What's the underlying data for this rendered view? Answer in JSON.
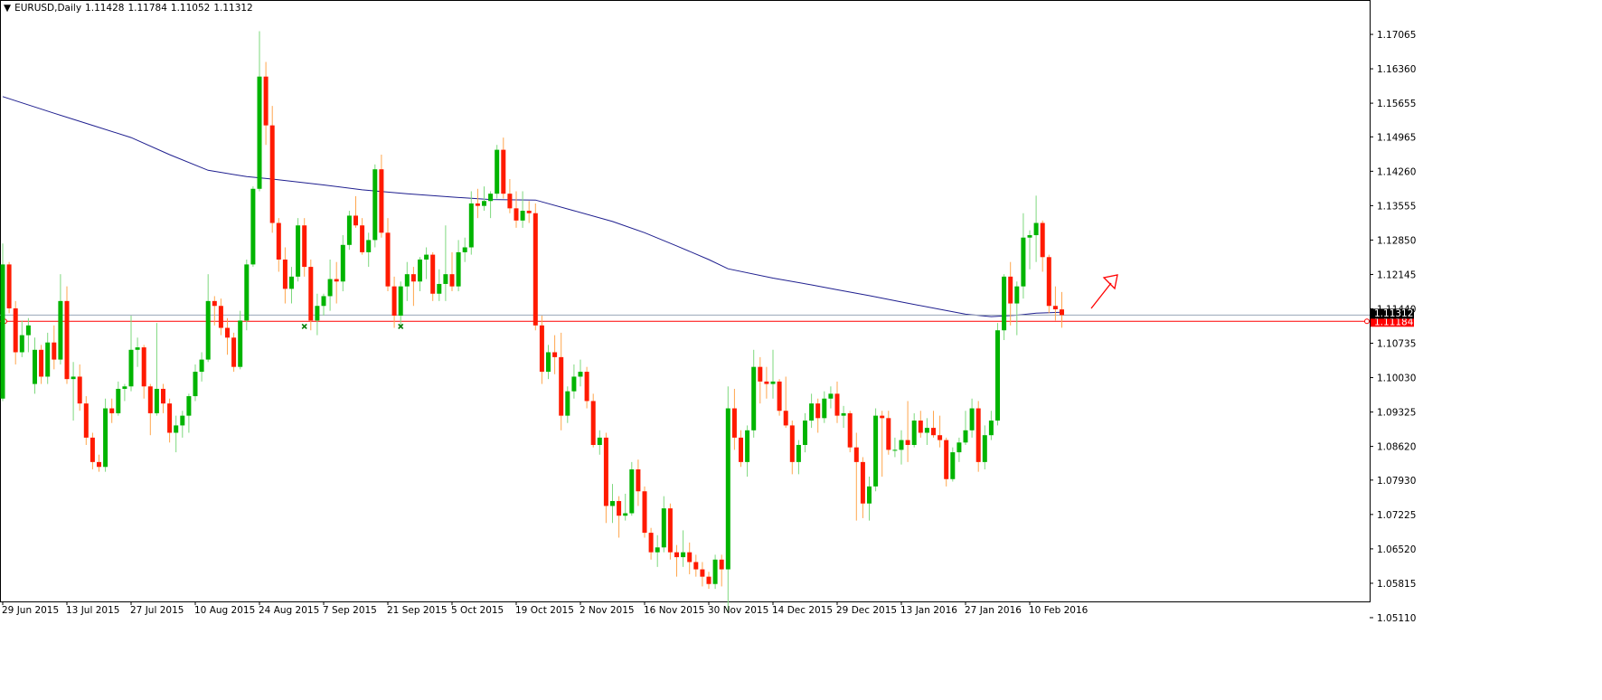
{
  "chart_data": {
    "type": "candlestick",
    "title": "EURUSD,Daily",
    "categories": [
      "29 Jun 2015",
      null,
      null,
      null,
      null,
      null,
      null,
      null,
      null,
      null,
      "13 Jul 2015",
      null,
      null,
      null,
      null,
      null,
      null,
      null,
      null,
      null,
      "27 Jul 2015",
      null,
      null,
      null,
      null,
      null,
      null,
      null,
      null,
      null,
      "10 Aug 2015",
      null,
      null,
      null,
      null,
      null,
      null,
      null,
      null,
      null,
      "24 Aug 2015",
      null,
      null,
      null,
      null,
      null,
      null,
      null,
      null,
      null,
      "7 Sep 2015",
      null,
      null,
      null,
      null,
      null,
      null,
      null,
      null,
      null,
      "21 Sep 2015",
      null,
      null,
      null,
      null,
      null,
      null,
      null,
      null,
      null,
      "5 Oct 2015",
      null,
      null,
      null,
      null,
      null,
      null,
      null,
      null,
      null,
      "19 Oct 2015",
      null,
      null,
      null,
      null,
      null,
      null,
      null,
      null,
      null,
      "2 Nov 2015",
      null,
      null,
      null,
      null,
      null,
      null,
      null,
      null,
      null,
      "16 Nov 2015",
      null,
      null,
      null,
      null,
      null,
      null,
      null,
      null,
      null,
      "30 Nov 2015",
      null,
      null,
      null,
      null,
      null,
      null,
      null,
      null,
      null,
      "14 Dec 2015",
      null,
      null,
      null,
      null,
      null,
      null,
      null,
      null,
      null,
      "29 Dec 2015",
      null,
      null,
      null,
      null,
      null,
      null,
      null,
      null,
      null,
      "13 Jan 2016",
      null,
      null,
      null,
      null,
      null,
      null,
      null,
      null,
      null,
      "27 Jan 2016",
      null,
      null,
      null,
      null,
      null,
      null,
      null,
      null,
      null,
      "10 Feb 2016",
      null,
      null,
      null,
      null,
      null
    ],
    "ohlc": [
      [
        1.096,
        1.1278,
        1.0955,
        1.1235
      ],
      [
        1.1235,
        1.124,
        1.1135,
        1.1145
      ],
      [
        1.1145,
        1.116,
        1.103,
        1.1055
      ],
      [
        1.1055,
        1.112,
        1.1045,
        1.109
      ],
      [
        1.109,
        1.1125,
        1.1055,
        1.111
      ],
      [
        1.099,
        1.1085,
        1.097,
        1.106
      ],
      [
        1.106,
        1.107,
        1.099,
        1.1005
      ],
      [
        1.1005,
        1.1095,
        1.099,
        1.1075
      ],
      [
        1.1075,
        1.111,
        1.102,
        1.104
      ],
      [
        1.104,
        1.1215,
        1.103,
        1.116
      ],
      [
        1.116,
        1.119,
        1.099,
        1.1
      ],
      [
        1.1,
        1.1035,
        1.0915,
        1.1005
      ],
      [
        1.1005,
        1.103,
        1.0935,
        1.095
      ],
      [
        1.095,
        1.0965,
        1.0865,
        1.088
      ],
      [
        1.088,
        1.089,
        1.0815,
        1.083
      ],
      [
        1.083,
        1.0845,
        1.081,
        1.082
      ],
      [
        1.082,
        1.096,
        1.081,
        1.094
      ],
      [
        1.094,
        1.096,
        1.091,
        1.093
      ],
      [
        1.093,
        1.0995,
        1.0925,
        1.098
      ],
      [
        1.098,
        1.099,
        1.0955,
        1.0985
      ],
      [
        1.0985,
        1.113,
        1.0975,
        1.106
      ],
      [
        1.106,
        1.1085,
        1.1025,
        1.1065
      ],
      [
        1.1065,
        1.107,
        1.096,
        1.0985
      ],
      [
        1.0985,
        1.099,
        1.0885,
        1.093
      ],
      [
        1.093,
        1.1115,
        1.0925,
        1.098
      ],
      [
        1.098,
        1.099,
        1.093,
        1.095
      ],
      [
        1.095,
        1.096,
        1.087,
        1.089
      ],
      [
        1.089,
        1.0925,
        1.085,
        1.0905
      ],
      [
        1.0905,
        1.0935,
        1.088,
        1.0925
      ],
      [
        1.0925,
        1.097,
        1.089,
        1.0965
      ],
      [
        1.0965,
        1.103,
        1.0955,
        1.1015
      ],
      [
        1.1015,
        1.1055,
        1.0995,
        1.104
      ],
      [
        1.104,
        1.1215,
        1.1035,
        1.116
      ],
      [
        1.116,
        1.117,
        1.111,
        1.115
      ],
      [
        1.115,
        1.1165,
        1.109,
        1.1105
      ],
      [
        1.1105,
        1.1125,
        1.105,
        1.1085
      ],
      [
        1.1085,
        1.1095,
        1.1015,
        1.1025
      ],
      [
        1.1025,
        1.114,
        1.102,
        1.112
      ],
      [
        1.112,
        1.1245,
        1.11,
        1.1235
      ],
      [
        1.1235,
        1.1395,
        1.123,
        1.139
      ],
      [
        1.139,
        1.1713,
        1.1385,
        1.162
      ],
      [
        1.162,
        1.165,
        1.148,
        1.152
      ],
      [
        1.152,
        1.156,
        1.13,
        1.132
      ],
      [
        1.132,
        1.133,
        1.122,
        1.1245
      ],
      [
        1.1245,
        1.127,
        1.1155,
        1.1185
      ],
      [
        1.1185,
        1.123,
        1.1155,
        1.121
      ],
      [
        1.121,
        1.133,
        1.12,
        1.1315
      ],
      [
        1.1315,
        1.133,
        1.121,
        1.123
      ],
      [
        1.123,
        1.1245,
        1.11,
        1.112
      ],
      [
        1.112,
        1.1175,
        1.109,
        1.115
      ],
      [
        1.115,
        1.1175,
        1.113,
        1.117
      ],
      [
        1.117,
        1.1245,
        1.114,
        1.1205
      ],
      [
        1.1205,
        1.124,
        1.1155,
        1.12
      ],
      [
        1.12,
        1.1295,
        1.118,
        1.1275
      ],
      [
        1.1275,
        1.1345,
        1.1265,
        1.1335
      ],
      [
        1.1335,
        1.1375,
        1.131,
        1.1315
      ],
      [
        1.1315,
        1.133,
        1.1255,
        1.126
      ],
      [
        1.126,
        1.13,
        1.123,
        1.1285
      ],
      [
        1.1285,
        1.144,
        1.127,
        1.143
      ],
      [
        1.143,
        1.146,
        1.129,
        1.13
      ],
      [
        1.13,
        1.133,
        1.118,
        1.119
      ],
      [
        1.119,
        1.121,
        1.1105,
        1.113
      ],
      [
        1.113,
        1.12,
        1.1105,
        1.119
      ],
      [
        1.119,
        1.124,
        1.116,
        1.1215
      ],
      [
        1.1215,
        1.123,
        1.115,
        1.12
      ],
      [
        1.12,
        1.125,
        1.118,
        1.1245
      ],
      [
        1.1245,
        1.127,
        1.1205,
        1.1255
      ],
      [
        1.1255,
        1.126,
        1.116,
        1.1175
      ],
      [
        1.1175,
        1.1225,
        1.116,
        1.1195
      ],
      [
        1.1195,
        1.1315,
        1.116,
        1.1215
      ],
      [
        1.1215,
        1.126,
        1.118,
        1.119
      ],
      [
        1.119,
        1.1285,
        1.118,
        1.126
      ],
      [
        1.126,
        1.129,
        1.124,
        1.127
      ],
      [
        1.127,
        1.1385,
        1.1255,
        1.136
      ],
      [
        1.136,
        1.139,
        1.133,
        1.1355
      ],
      [
        1.1355,
        1.1395,
        1.1345,
        1.1365
      ],
      [
        1.1365,
        1.1385,
        1.133,
        1.138
      ],
      [
        1.138,
        1.148,
        1.137,
        1.147
      ],
      [
        1.147,
        1.1495,
        1.137,
        1.138
      ],
      [
        1.138,
        1.141,
        1.134,
        1.135
      ],
      [
        1.135,
        1.1385,
        1.131,
        1.1325
      ],
      [
        1.1325,
        1.1385,
        1.131,
        1.1345
      ],
      [
        1.1345,
        1.1365,
        1.132,
        1.134
      ],
      [
        1.134,
        1.136,
        1.11,
        1.111
      ],
      [
        1.111,
        1.113,
        1.099,
        1.1015
      ],
      [
        1.1015,
        1.107,
        1.1,
        1.1055
      ],
      [
        1.1055,
        1.109,
        1.101,
        1.1045
      ],
      [
        1.1045,
        1.1095,
        1.0895,
        1.0925
      ],
      [
        1.0925,
        1.0985,
        1.091,
        1.0975
      ],
      [
        1.0975,
        1.103,
        1.096,
        1.1005
      ],
      [
        1.1005,
        1.104,
        1.0985,
        1.1015
      ],
      [
        1.1015,
        1.1025,
        1.094,
        1.0955
      ],
      [
        1.0955,
        1.097,
        1.086,
        1.0865
      ],
      [
        1.0865,
        1.0895,
        1.0845,
        1.088
      ],
      [
        1.088,
        1.089,
        1.0705,
        1.074
      ],
      [
        1.074,
        1.0785,
        1.0705,
        1.075
      ],
      [
        1.075,
        1.076,
        1.0675,
        1.072
      ],
      [
        1.072,
        1.0765,
        1.071,
        1.0725
      ],
      [
        1.0725,
        1.083,
        1.072,
        1.0815
      ],
      [
        1.0815,
        1.0835,
        1.074,
        1.077
      ],
      [
        1.077,
        1.078,
        1.0675,
        1.0685
      ],
      [
        1.0685,
        1.0695,
        1.063,
        1.0645
      ],
      [
        1.0645,
        1.068,
        1.0615,
        1.0655
      ],
      [
        1.0655,
        1.076,
        1.0645,
        1.0735
      ],
      [
        1.0735,
        1.0745,
        1.063,
        1.0645
      ],
      [
        1.0645,
        1.066,
        1.0595,
        1.0635
      ],
      [
        1.0635,
        1.069,
        1.0615,
        1.0645
      ],
      [
        1.0645,
        1.0665,
        1.06,
        1.0625
      ],
      [
        1.0625,
        1.064,
        1.0595,
        1.061
      ],
      [
        1.061,
        1.0625,
        1.0575,
        1.0595
      ],
      [
        1.0595,
        1.0605,
        1.057,
        1.058
      ],
      [
        1.058,
        1.064,
        1.057,
        1.063
      ],
      [
        1.063,
        1.064,
        1.0575,
        1.061
      ],
      [
        1.061,
        1.0985,
        1.0524,
        1.094
      ],
      [
        1.094,
        1.098,
        1.0855,
        1.088
      ],
      [
        1.088,
        1.0895,
        1.082,
        1.083
      ],
      [
        1.083,
        1.0905,
        1.08,
        1.0895
      ],
      [
        1.0895,
        1.106,
        1.088,
        1.1025
      ],
      [
        1.1025,
        1.1045,
        1.095,
        1.0995
      ],
      [
        1.0995,
        1.1025,
        1.096,
        1.099
      ],
      [
        1.099,
        1.106,
        1.096,
        1.0995
      ],
      [
        1.0995,
        1.1,
        1.0925,
        1.0935
      ],
      [
        1.0935,
        1.1005,
        1.09,
        1.0905
      ],
      [
        1.0905,
        1.0915,
        1.0805,
        1.083
      ],
      [
        1.083,
        1.0875,
        1.0805,
        1.0865
      ],
      [
        1.0865,
        1.093,
        1.085,
        1.0915
      ],
      [
        1.0915,
        1.097,
        1.09,
        1.095
      ],
      [
        1.095,
        1.096,
        1.089,
        1.092
      ],
      [
        1.092,
        1.0975,
        1.091,
        1.096
      ],
      [
        1.096,
        1.0985,
        1.094,
        1.097
      ],
      [
        1.097,
        1.0995,
        1.091,
        1.0925
      ],
      [
        1.0925,
        1.0945,
        1.09,
        1.093
      ],
      [
        1.093,
        1.0935,
        1.085,
        1.086
      ],
      [
        1.086,
        1.089,
        1.071,
        1.083
      ],
      [
        1.083,
        1.084,
        1.0715,
        1.0745
      ],
      [
        1.0745,
        1.08,
        1.071,
        1.078
      ],
      [
        1.078,
        1.094,
        1.077,
        1.0925
      ],
      [
        1.0925,
        1.0935,
        1.08,
        1.092
      ],
      [
        1.092,
        1.0935,
        1.0845,
        1.0855
      ],
      [
        1.0855,
        1.088,
        1.084,
        1.0855
      ],
      [
        1.0855,
        1.0895,
        1.0825,
        1.0875
      ],
      [
        1.0875,
        1.0955,
        1.083,
        1.0865
      ],
      [
        1.0865,
        1.093,
        1.086,
        1.0915
      ],
      [
        1.0915,
        1.0935,
        1.088,
        1.089
      ],
      [
        1.089,
        1.092,
        1.0865,
        1.09
      ],
      [
        1.09,
        1.0935,
        1.088,
        1.0885
      ],
      [
        1.0885,
        1.0925,
        1.086,
        1.0875
      ],
      [
        1.0875,
        1.088,
        1.078,
        1.0795
      ],
      [
        1.0795,
        1.086,
        1.079,
        1.085
      ],
      [
        1.085,
        1.088,
        1.083,
        1.087
      ],
      [
        1.087,
        1.0935,
        1.0865,
        1.0895
      ],
      [
        1.0895,
        1.096,
        1.088,
        1.094
      ],
      [
        1.094,
        1.0955,
        1.081,
        1.083
      ],
      [
        1.083,
        1.0905,
        1.0815,
        1.0885
      ],
      [
        1.0885,
        1.0935,
        1.0875,
        1.0915
      ],
      [
        1.0915,
        1.1115,
        1.0905,
        1.11
      ],
      [
        1.11,
        1.1215,
        1.108,
        1.121
      ],
      [
        1.121,
        1.124,
        1.111,
        1.1155
      ],
      [
        1.1155,
        1.12,
        1.109,
        1.119
      ],
      [
        1.119,
        1.134,
        1.1165,
        1.129
      ],
      [
        1.129,
        1.1305,
        1.1225,
        1.1295
      ],
      [
        1.1295,
        1.1376,
        1.124,
        1.132
      ],
      [
        1.132,
        1.1325,
        1.122,
        1.125
      ],
      [
        1.125,
        1.1255,
        1.1135,
        1.115
      ],
      [
        1.115,
        1.119,
        1.112,
        1.1143
      ],
      [
        1.11428,
        1.11784,
        1.11052,
        1.11312
      ]
    ],
    "colors": {
      "up_body": "#00b400",
      "up_wick": "#7ed87e",
      "down_body": "#ff1a00",
      "down_wick": "#ffa64d"
    },
    "moving_average": {
      "color": "#1f1f8f",
      "x": [
        0,
        8,
        14,
        20,
        26,
        32,
        38,
        42,
        50,
        56,
        63,
        70,
        76,
        83,
        89,
        95,
        100,
        105,
        110,
        113,
        120,
        126,
        130,
        135,
        140,
        146,
        150,
        154,
        158,
        161,
        165
      ],
      "values": [
        1.1579,
        1.1545,
        1.152,
        1.1495,
        1.146,
        1.1428,
        1.1415,
        1.141,
        1.1398,
        1.1388,
        1.138,
        1.1373,
        1.1368,
        1.1367,
        1.1345,
        1.1323,
        1.13,
        1.1273,
        1.1245,
        1.1226,
        1.1207,
        1.1193,
        1.1183,
        1.1171,
        1.1158,
        1.1143,
        1.1133,
        1.1128,
        1.1131,
        1.1135,
        1.1137
      ]
    },
    "markers": {
      "color": "#007a00",
      "x": [
        47,
        62
      ],
      "values": [
        1.1108,
        1.1108
      ]
    },
    "levels": [
      {
        "value": 1.11184,
        "color": "#ff0000"
      }
    ],
    "bid_color": "#9aa6b8",
    "ylim": [
      1.051,
      1.1777
    ],
    "yticks": [
      1.17065,
      {
        "value": 1.1636,
        "label": "1.16360"
      },
      1.15655,
      1.14965,
      {
        "value": 1.1426,
        "label": "1.14260"
      },
      1.13555,
      {
        "value": 1.1285,
        "label": "1.12850"
      },
      1.12145,
      {
        "value": 1.1144,
        "label": "1.11440"
      },
      1.10735,
      {
        "value": 1.1003,
        "label": "1.10030"
      },
      1.09325,
      {
        "value": 1.0862,
        "label": "1.08620"
      },
      {
        "value": 1.0793,
        "label": "1.07930"
      },
      1.07225,
      {
        "value": 1.0652,
        "label": "1.06520"
      },
      1.05815,
      {
        "value": 1.0511,
        "label": "1.05110"
      }
    ]
  }
}
